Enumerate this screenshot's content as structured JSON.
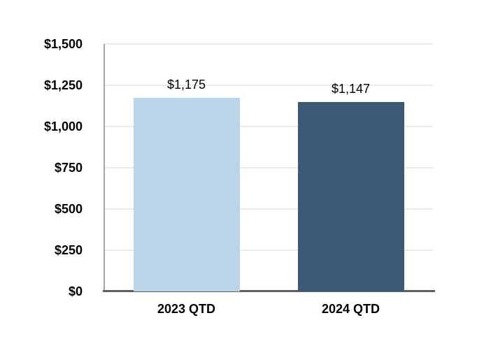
{
  "chart_data": {
    "type": "bar",
    "title": "",
    "xlabel": "",
    "ylabel": "",
    "categories": [
      "2023 QTD",
      "2024 QTD"
    ],
    "values": [
      1175,
      1147
    ],
    "value_labels": [
      "$1,175",
      "$1,147"
    ],
    "bar_colors": [
      "#bad5e9",
      "#3a5a78"
    ],
    "ylim": [
      0,
      1500
    ],
    "ytick_interval": 250,
    "ytick_labels": [
      "$0",
      "$250",
      "$500",
      "$750",
      "$1,000",
      "$1,250",
      "$1,500"
    ],
    "grid": "horizontal gridlines on",
    "legend": "none"
  },
  "colors": {
    "background": "#ffffff",
    "gridline": "#ebebeb",
    "yaxis_line": "#a6a6a6",
    "xaxis_line": "#5f5f5f",
    "text": "#000000",
    "bar_2023_qtd": "#bad5e9",
    "bar_2024_qtd": "#3a5a78"
  }
}
